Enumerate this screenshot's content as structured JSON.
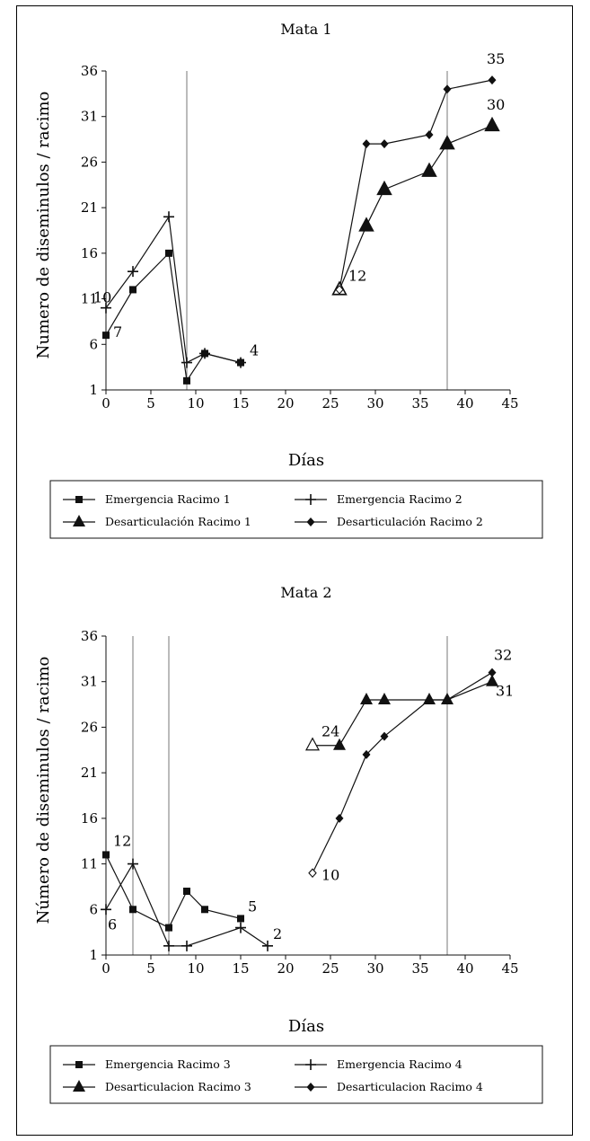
{
  "chart_data": [
    {
      "type": "line",
      "title": "Mata 1",
      "xlabel": "Días",
      "ylabel": "Numero de diseminulos / racimo",
      "xlim": [
        0,
        45
      ],
      "ylim": [
        1,
        36
      ],
      "xticks": [
        0,
        5,
        10,
        15,
        20,
        25,
        30,
        35,
        40,
        45
      ],
      "yticks": [
        1,
        6,
        11,
        16,
        21,
        26,
        31,
        36
      ],
      "grid": false,
      "legend_position": "below",
      "reference_lines_x": [
        9,
        38
      ],
      "series": [
        {
          "name": "Emergencia Racimo 1",
          "marker": "square",
          "x": [
            0,
            3,
            7,
            9,
            11,
            15
          ],
          "y": [
            7,
            12,
            16,
            2,
            5,
            4
          ]
        },
        {
          "name": "Emergencia Racimo 2",
          "marker": "plus",
          "x": [
            0,
            3,
            7,
            9,
            11,
            15
          ],
          "y": [
            10,
            14,
            20,
            4,
            5,
            4
          ]
        },
        {
          "name": "Desarticulación Racimo 1",
          "marker": "triangle",
          "x": [
            26,
            29,
            31,
            36,
            38,
            43
          ],
          "y": [
            12,
            19,
            23,
            25,
            28,
            30
          ]
        },
        {
          "name": "Desarticulación Racimo 2",
          "marker": "diamond",
          "x": [
            26,
            29,
            31,
            36,
            38,
            43
          ],
          "y": [
            12,
            28,
            28,
            29,
            34,
            35
          ]
        }
      ],
      "start_markers": [
        {
          "marker": "triangle-open",
          "x": 26,
          "y": 12
        },
        {
          "marker": "diamond-open",
          "x": 26,
          "y": 12
        }
      ],
      "annotations": [
        {
          "text": "10",
          "x": 0,
          "y": 10,
          "dx": -14,
          "dy": -6
        },
        {
          "text": "7",
          "x": 0,
          "y": 7,
          "dx": 8,
          "dy": 2
        },
        {
          "text": "4",
          "x": 15,
          "y": 4,
          "dx": 10,
          "dy": -8
        },
        {
          "text": "12",
          "x": 26,
          "y": 12,
          "dx": 10,
          "dy": -10
        },
        {
          "text": "35",
          "x": 43,
          "y": 35,
          "dx": -6,
          "dy": -18
        },
        {
          "text": "30",
          "x": 43,
          "y": 30,
          "dx": -6,
          "dy": -18
        }
      ]
    },
    {
      "type": "line",
      "title": "Mata 2",
      "xlabel": "Días",
      "ylabel": "Número de diseminulos / racimo",
      "xlim": [
        0,
        45
      ],
      "ylim": [
        1,
        36
      ],
      "xticks": [
        0,
        5,
        10,
        15,
        20,
        25,
        30,
        35,
        40,
        45
      ],
      "yticks": [
        1,
        6,
        11,
        16,
        21,
        26,
        31,
        36
      ],
      "grid": false,
      "legend_position": "below",
      "reference_lines_x": [
        3,
        7,
        38
      ],
      "series": [
        {
          "name": "Emergencia Racimo 3",
          "marker": "square",
          "x": [
            0,
            3,
            7,
            9,
            11,
            15
          ],
          "y": [
            12,
            6,
            4,
            8,
            6,
            5
          ]
        },
        {
          "name": "Emergencia Racimo 4",
          "marker": "plus",
          "x": [
            0,
            3,
            7,
            9,
            15,
            18
          ],
          "y": [
            6,
            11,
            2,
            2,
            4,
            2
          ]
        },
        {
          "name": "Desarticulacion Racimo 3",
          "marker": "triangle",
          "x": [
            23,
            26,
            29,
            31,
            36,
            38,
            43
          ],
          "y": [
            24,
            24,
            29,
            29,
            29,
            29,
            31
          ]
        },
        {
          "name": "Desarticulacion Racimo 4",
          "marker": "diamond",
          "x": [
            23,
            26,
            29,
            31,
            36,
            38,
            43
          ],
          "y": [
            10,
            16,
            23,
            25,
            29,
            29,
            32
          ]
        }
      ],
      "start_markers": [
        {
          "marker": "triangle-open",
          "x": 23,
          "y": 24
        },
        {
          "marker": "diamond-open",
          "x": 23,
          "y": 10
        }
      ],
      "annotations": [
        {
          "text": "12",
          "x": 0,
          "y": 12,
          "dx": 8,
          "dy": -10
        },
        {
          "text": "6",
          "x": 0,
          "y": 6,
          "dx": 2,
          "dy": 22
        },
        {
          "text": "5",
          "x": 15,
          "y": 5,
          "dx": 8,
          "dy": -8
        },
        {
          "text": "2",
          "x": 18,
          "y": 2,
          "dx": 6,
          "dy": -8
        },
        {
          "text": "24",
          "x": 23,
          "y": 24,
          "dx": 10,
          "dy": -10
        },
        {
          "text": "10",
          "x": 23,
          "y": 10,
          "dx": 10,
          "dy": 8
        },
        {
          "text": "32",
          "x": 43,
          "y": 32,
          "dx": 2,
          "dy": -14
        },
        {
          "text": "31",
          "x": 43,
          "y": 31,
          "dx": 4,
          "dy": 16
        }
      ]
    }
  ]
}
